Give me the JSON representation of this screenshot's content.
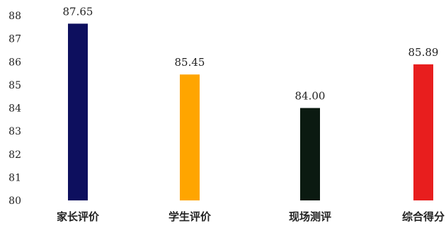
{
  "chart_data": {
    "type": "bar",
    "title": "",
    "xlabel": "",
    "ylabel": "",
    "categories": [
      "家长评价",
      "学生评价",
      "现场测评",
      "综合得分"
    ],
    "values": [
      87.65,
      85.45,
      84.0,
      85.89
    ],
    "value_labels": [
      "87.65",
      "85.45",
      "84.00",
      "85.89"
    ],
    "colors": [
      "#0d0f5e",
      "#ffa500",
      "#0b1a11",
      "#e81e1e"
    ],
    "ylim": [
      80,
      88
    ],
    "yticks": [
      80,
      81,
      82,
      83,
      84,
      85,
      86,
      87,
      88
    ],
    "grid": false,
    "legend": "none"
  }
}
